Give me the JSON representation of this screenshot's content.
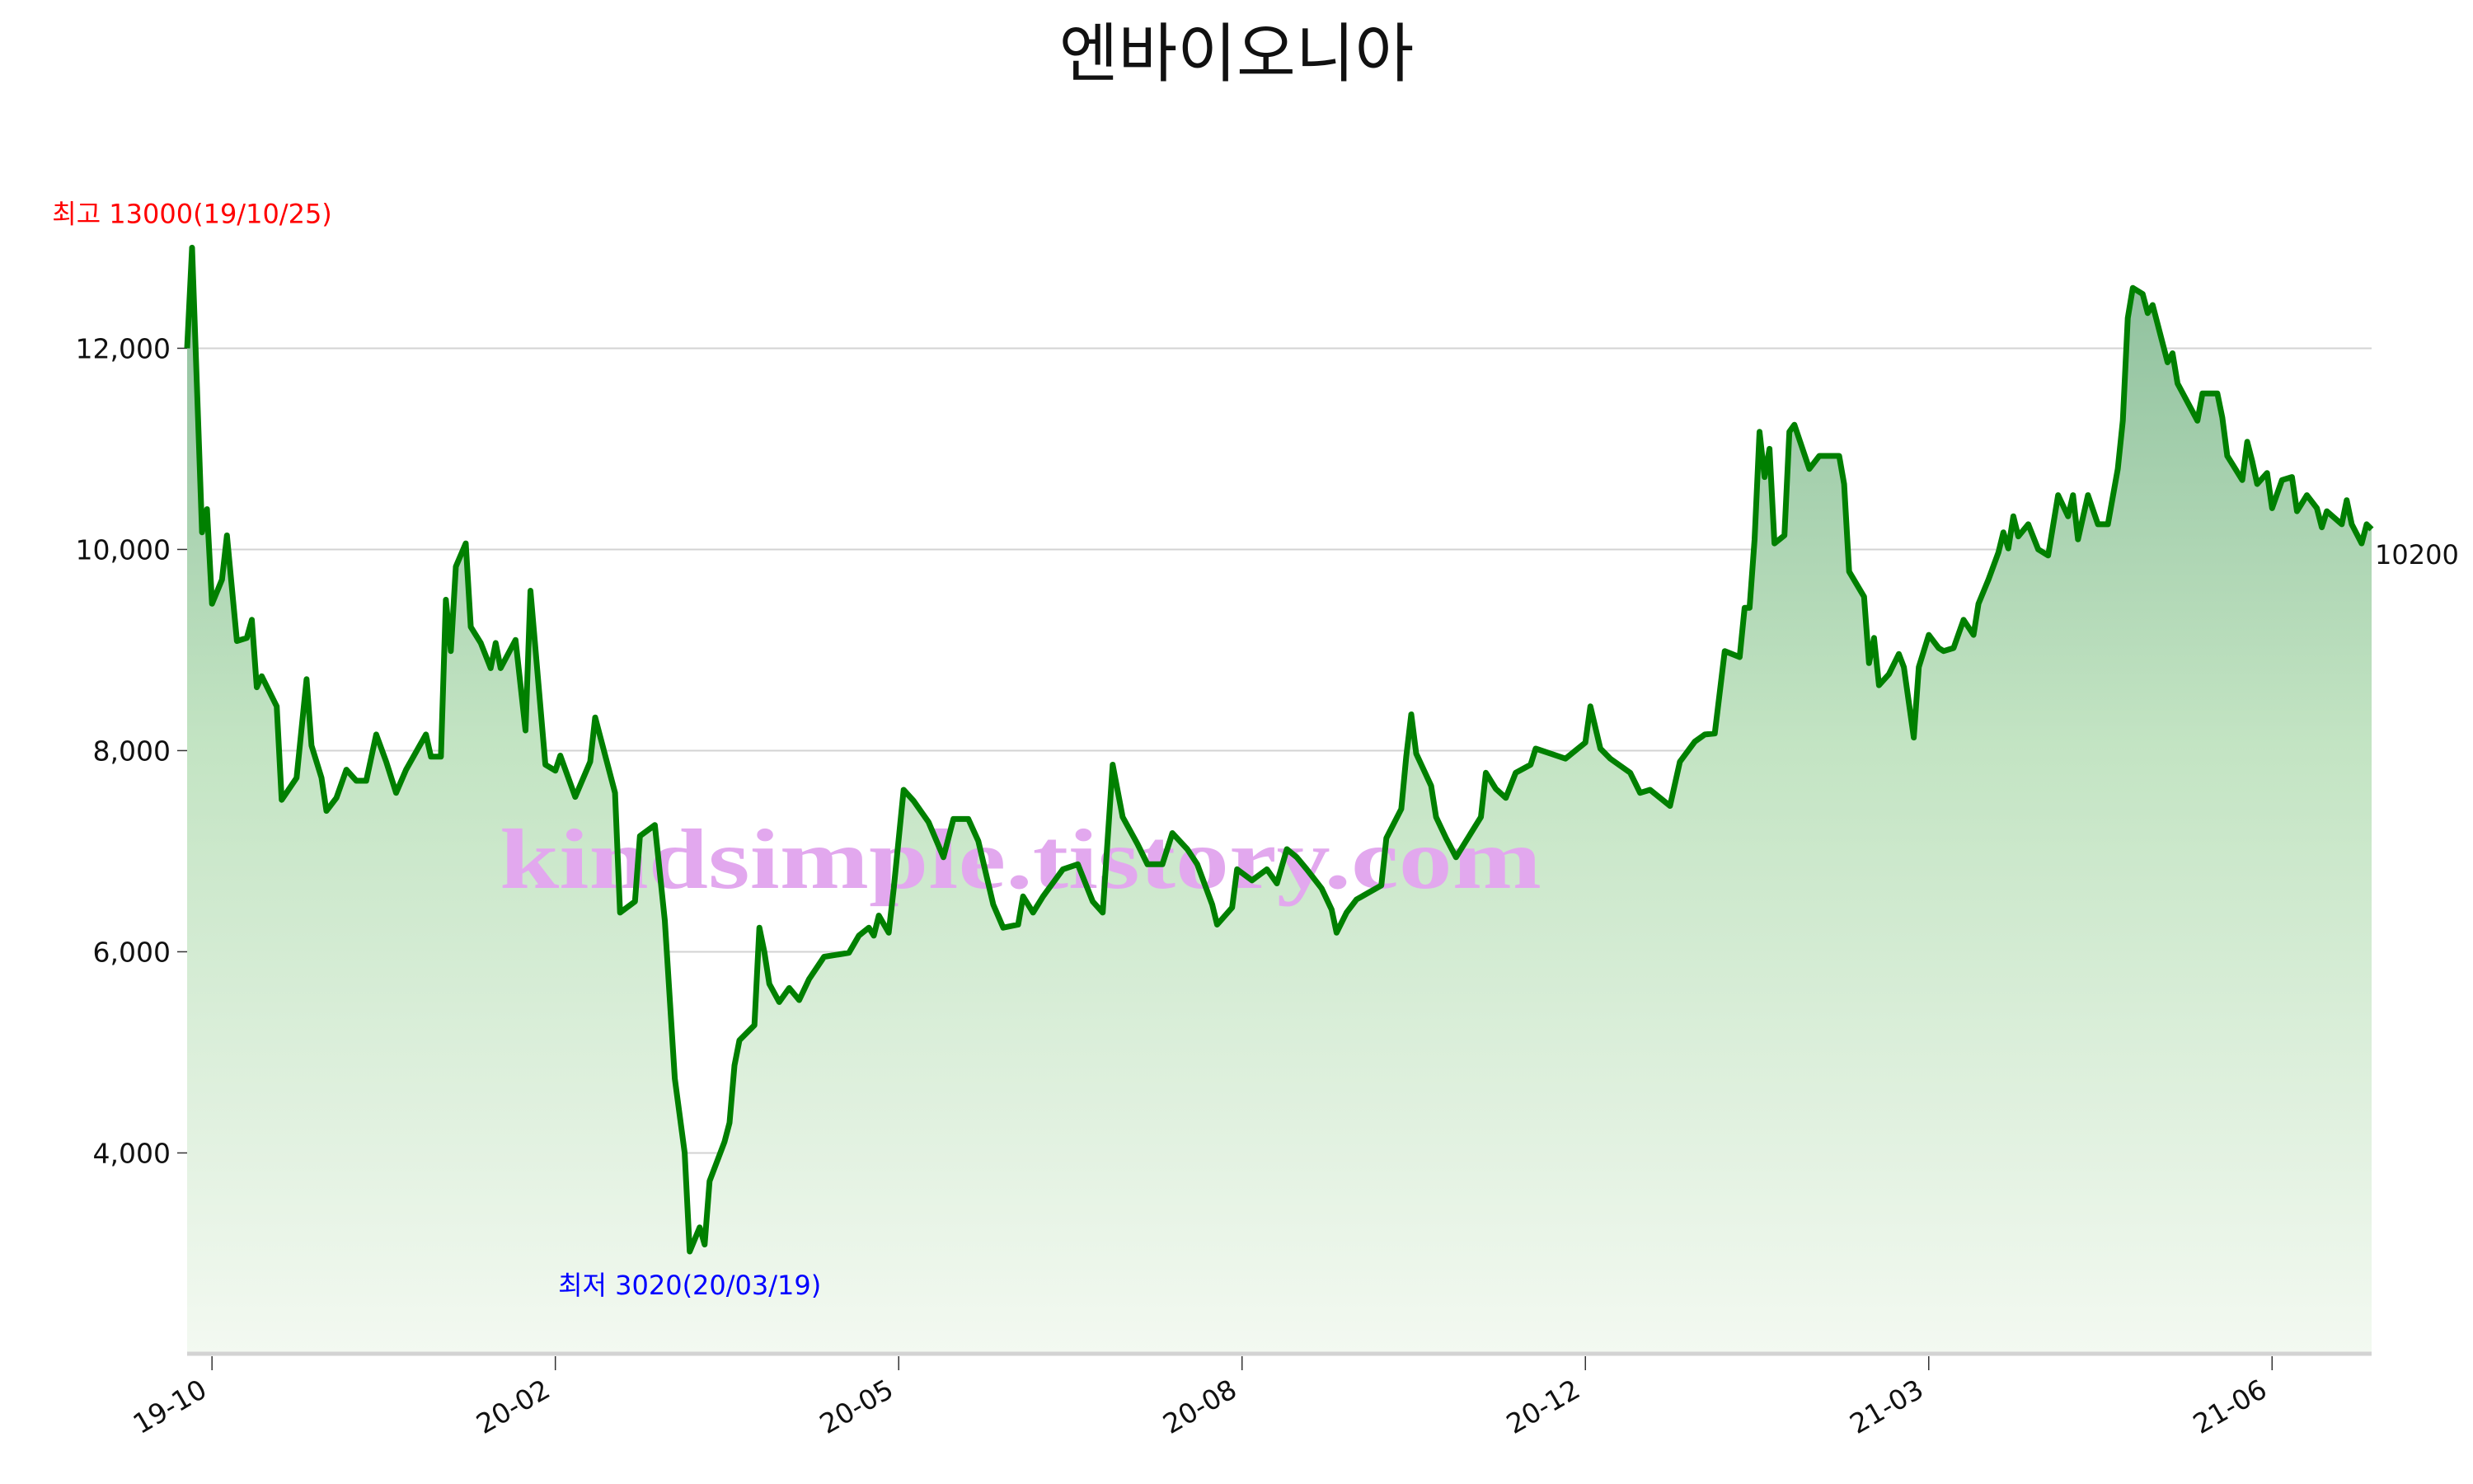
{
  "chart_data": {
    "type": "area",
    "title": "엔바이오니아",
    "ylim": [
      2020,
      13500
    ],
    "y_ticks": [
      {
        "value": 4000,
        "label": "4,000"
      },
      {
        "value": 6000,
        "label": "6,000"
      },
      {
        "value": 8000,
        "label": "8,000"
      },
      {
        "value": 10000,
        "label": "10,000"
      },
      {
        "value": 12000,
        "label": "12,000"
      }
    ],
    "x_ticks": [
      {
        "index": 5,
        "label": "19-10"
      },
      {
        "index": 74,
        "label": "20-02"
      },
      {
        "index": 143,
        "label": "20-05"
      },
      {
        "index": 212,
        "label": "20-08"
      },
      {
        "index": 281,
        "label": "20-12"
      },
      {
        "index": 350,
        "label": "21-03"
      },
      {
        "index": 419,
        "label": "21-06"
      }
    ],
    "grid": "horizontal",
    "line_color": "#008000",
    "fill_top_color": "#8dbf9c",
    "fill_bottom_color": "#f3f9f1",
    "points": [
      [
        0,
        12000
      ],
      [
        1,
        13000
      ],
      [
        3,
        10170
      ],
      [
        4,
        10400
      ],
      [
        5,
        9460
      ],
      [
        7,
        9700
      ],
      [
        8,
        10140
      ],
      [
        10,
        9090
      ],
      [
        12,
        9120
      ],
      [
        13,
        9300
      ],
      [
        14,
        8630
      ],
      [
        15,
        8740
      ],
      [
        18,
        8440
      ],
      [
        19,
        7510
      ],
      [
        22,
        7730
      ],
      [
        24,
        8710
      ],
      [
        25,
        8050
      ],
      [
        27,
        7730
      ],
      [
        28,
        7400
      ],
      [
        30,
        7530
      ],
      [
        32,
        7810
      ],
      [
        34,
        7700
      ],
      [
        36,
        7700
      ],
      [
        38,
        8160
      ],
      [
        40,
        7890
      ],
      [
        42,
        7580
      ],
      [
        44,
        7810
      ],
      [
        48,
        8160
      ],
      [
        49,
        7940
      ],
      [
        51,
        7940
      ],
      [
        52,
        9500
      ],
      [
        53,
        8990
      ],
      [
        54,
        9830
      ],
      [
        56,
        10060
      ],
      [
        57,
        9230
      ],
      [
        59,
        9070
      ],
      [
        61,
        8820
      ],
      [
        62,
        9070
      ],
      [
        63,
        8820
      ],
      [
        66,
        9100
      ],
      [
        68,
        8200
      ],
      [
        69,
        9590
      ],
      [
        72,
        7860
      ],
      [
        74,
        7800
      ],
      [
        75,
        7950
      ],
      [
        78,
        7540
      ],
      [
        81,
        7890
      ],
      [
        82,
        8330
      ],
      [
        86,
        7580
      ],
      [
        87,
        6390
      ],
      [
        90,
        6500
      ],
      [
        91,
        7150
      ],
      [
        94,
        7260
      ],
      [
        96,
        6310
      ],
      [
        98,
        4740
      ],
      [
        100,
        4000
      ],
      [
        101,
        3020
      ],
      [
        103,
        3260
      ],
      [
        104,
        3090
      ],
      [
        105,
        3720
      ],
      [
        108,
        4110
      ],
      [
        109,
        4300
      ],
      [
        110,
        4870
      ],
      [
        111,
        5120
      ],
      [
        114,
        5270
      ],
      [
        115,
        6240
      ],
      [
        116,
        6000
      ],
      [
        117,
        5680
      ],
      [
        119,
        5500
      ],
      [
        121,
        5640
      ],
      [
        123,
        5520
      ],
      [
        125,
        5730
      ],
      [
        128,
        5950
      ],
      [
        133,
        5990
      ],
      [
        135,
        6160
      ],
      [
        137,
        6240
      ],
      [
        138,
        6160
      ],
      [
        139,
        6360
      ],
      [
        141,
        6190
      ],
      [
        142,
        6630
      ],
      [
        144,
        7610
      ],
      [
        146,
        7500
      ],
      [
        149,
        7290
      ],
      [
        152,
        6940
      ],
      [
        154,
        7320
      ],
      [
        157,
        7320
      ],
      [
        159,
        7100
      ],
      [
        162,
        6470
      ],
      [
        164,
        6240
      ],
      [
        167,
        6270
      ],
      [
        168,
        6550
      ],
      [
        170,
        6390
      ],
      [
        172,
        6550
      ],
      [
        176,
        6820
      ],
      [
        179,
        6870
      ],
      [
        182,
        6500
      ],
      [
        184,
        6390
      ],
      [
        186,
        7860
      ],
      [
        188,
        7340
      ],
      [
        191,
        7070
      ],
      [
        193,
        6870
      ],
      [
        196,
        6870
      ],
      [
        198,
        7180
      ],
      [
        201,
        7020
      ],
      [
        203,
        6870
      ],
      [
        206,
        6470
      ],
      [
        207,
        6270
      ],
      [
        210,
        6440
      ],
      [
        211,
        6820
      ],
      [
        214,
        6710
      ],
      [
        217,
        6820
      ],
      [
        219,
        6680
      ],
      [
        221,
        7020
      ],
      [
        223,
        6940
      ],
      [
        225,
        6820
      ],
      [
        228,
        6630
      ],
      [
        230,
        6420
      ],
      [
        231,
        6190
      ],
      [
        233,
        6390
      ],
      [
        235,
        6520
      ],
      [
        240,
        6660
      ],
      [
        241,
        7130
      ],
      [
        244,
        7420
      ],
      [
        245,
        7940
      ],
      [
        246,
        8360
      ],
      [
        247,
        7970
      ],
      [
        250,
        7650
      ],
      [
        251,
        7340
      ],
      [
        253,
        7130
      ],
      [
        255,
        6940
      ],
      [
        258,
        7180
      ],
      [
        260,
        7340
      ],
      [
        261,
        7780
      ],
      [
        263,
        7620
      ],
      [
        265,
        7530
      ],
      [
        267,
        7780
      ],
      [
        270,
        7860
      ],
      [
        271,
        8020
      ],
      [
        274,
        7970
      ],
      [
        277,
        7920
      ],
      [
        281,
        8080
      ],
      [
        282,
        8440
      ],
      [
        284,
        8020
      ],
      [
        286,
        7920
      ],
      [
        290,
        7780
      ],
      [
        292,
        7580
      ],
      [
        294,
        7610
      ],
      [
        298,
        7450
      ],
      [
        300,
        7890
      ],
      [
        303,
        8090
      ],
      [
        305,
        8160
      ],
      [
        307,
        8170
      ],
      [
        309,
        8990
      ],
      [
        312,
        8930
      ],
      [
        313,
        9420
      ],
      [
        314,
        9420
      ],
      [
        315,
        10100
      ],
      [
        316,
        11170
      ],
      [
        317,
        10720
      ],
      [
        318,
        11000
      ],
      [
        319,
        10060
      ],
      [
        321,
        10140
      ],
      [
        322,
        11170
      ],
      [
        323,
        11240
      ],
      [
        326,
        10800
      ],
      [
        328,
        10930
      ],
      [
        332,
        10930
      ],
      [
        333,
        10650
      ],
      [
        334,
        9780
      ],
      [
        337,
        9530
      ],
      [
        338,
        8870
      ],
      [
        339,
        9120
      ],
      [
        340,
        8650
      ],
      [
        342,
        8760
      ],
      [
        344,
        8960
      ],
      [
        345,
        8830
      ],
      [
        347,
        8130
      ],
      [
        348,
        8830
      ],
      [
        350,
        9150
      ],
      [
        352,
        9020
      ],
      [
        353,
        8990
      ],
      [
        355,
        9020
      ],
      [
        357,
        9300
      ],
      [
        359,
        9150
      ],
      [
        360,
        9460
      ],
      [
        362,
        9700
      ],
      [
        364,
        9970
      ],
      [
        365,
        10170
      ],
      [
        366,
        10010
      ],
      [
        367,
        10330
      ],
      [
        368,
        10130
      ],
      [
        370,
        10250
      ],
      [
        372,
        10000
      ],
      [
        374,
        9940
      ],
      [
        376,
        10540
      ],
      [
        378,
        10330
      ],
      [
        379,
        10540
      ],
      [
        380,
        10100
      ],
      [
        382,
        10540
      ],
      [
        384,
        10250
      ],
      [
        386,
        10250
      ],
      [
        388,
        10800
      ],
      [
        389,
        11280
      ],
      [
        390,
        12300
      ],
      [
        391,
        12600
      ],
      [
        393,
        12540
      ],
      [
        394,
        12350
      ],
      [
        395,
        12430
      ],
      [
        398,
        11860
      ],
      [
        399,
        11950
      ],
      [
        400,
        11650
      ],
      [
        404,
        11280
      ],
      [
        405,
        11550
      ],
      [
        408,
        11550
      ],
      [
        409,
        11310
      ],
      [
        410,
        10930
      ],
      [
        411,
        10850
      ],
      [
        413,
        10690
      ],
      [
        414,
        11070
      ],
      [
        415,
        10880
      ],
      [
        416,
        10650
      ],
      [
        418,
        10760
      ],
      [
        419,
        10410
      ],
      [
        421,
        10690
      ],
      [
        423,
        10720
      ],
      [
        424,
        10380
      ],
      [
        426,
        10540
      ],
      [
        428,
        10410
      ],
      [
        429,
        10220
      ],
      [
        430,
        10380
      ],
      [
        433,
        10250
      ],
      [
        434,
        10490
      ],
      [
        435,
        10250
      ],
      [
        437,
        10060
      ],
      [
        438,
        10250
      ],
      [
        439,
        10200
      ]
    ],
    "annotations": {
      "max": {
        "text": "최고 13000(19/10/25)",
        "index": 1,
        "value": 13000,
        "color": "#ff0000"
      },
      "min": {
        "text": "최저 3020(20/03/19)",
        "index": 101,
        "value": 3020,
        "color": "#0000ff"
      },
      "last": {
        "text": "10200",
        "index": 439,
        "value": 10200
      }
    },
    "watermark": "kindsimple.tistory.com"
  }
}
